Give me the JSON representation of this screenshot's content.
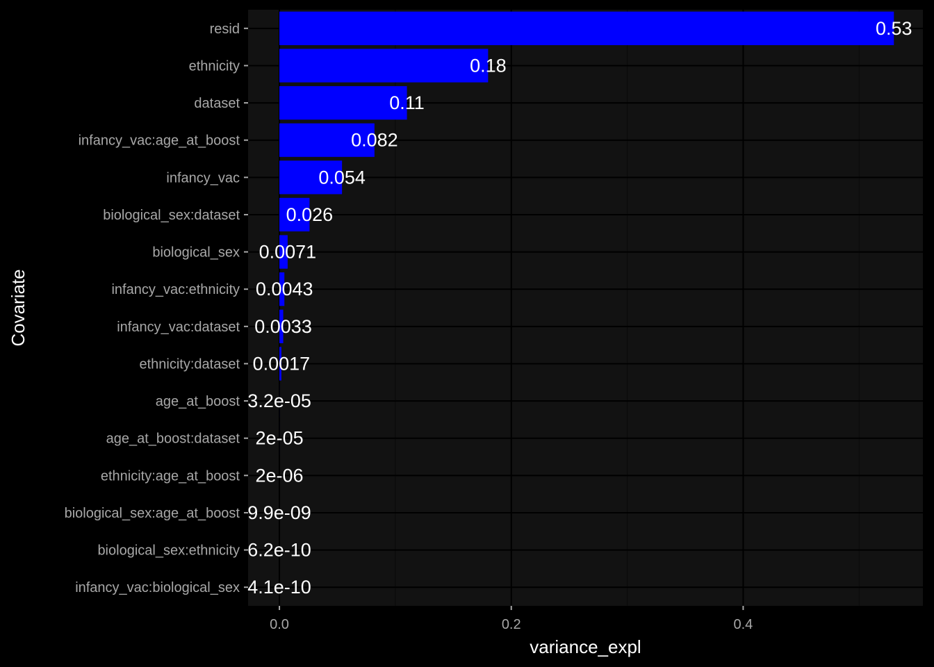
{
  "chart_data": {
    "type": "bar",
    "orientation": "horizontal",
    "title": "",
    "xlabel": "variance_expl",
    "ylabel": "Covariate",
    "xlim": [
      -0.027,
      0.555
    ],
    "x_ticks": [
      0.0,
      0.2,
      0.4
    ],
    "x_tick_labels": [
      "0.0",
      "0.2",
      "0.4"
    ],
    "grid": true,
    "legend": "none",
    "categories": [
      "resid",
      "ethnicity",
      "dataset",
      "infancy_vac:age_at_boost",
      "infancy_vac",
      "biological_sex:dataset",
      "biological_sex",
      "infancy_vac:ethnicity",
      "infancy_vac:dataset",
      "ethnicity:dataset",
      "age_at_boost",
      "age_at_boost:dataset",
      "ethnicity:age_at_boost",
      "biological_sex:age_at_boost",
      "biological_sex:ethnicity",
      "infancy_vac:biological_sex"
    ],
    "values": [
      0.53,
      0.18,
      0.11,
      0.082,
      0.054,
      0.026,
      0.0071,
      0.0043,
      0.0033,
      0.0017,
      3.2e-05,
      2e-05,
      2e-06,
      9.9e-09,
      6.2e-10,
      4.1e-10
    ],
    "data_labels": [
      "0.53",
      "0.18",
      "0.11",
      "0.082",
      "0.054",
      "0.026",
      "0.0071",
      "0.0043",
      "0.0033",
      "0.0017",
      "3.2e-05",
      "2e-05",
      "2e-06",
      "9.9e-09",
      "6.2e-10",
      "4.1e-10"
    ],
    "colors": {
      "bar": "#0000ff",
      "panel_background": "#121212",
      "page_background": "#000000",
      "grid_major": "#000000",
      "grid_minor": "#0a0a0a",
      "tick_text": "#a8a8a8",
      "data_label_text": "#ffffff",
      "axis_title": "#ffffff"
    }
  }
}
